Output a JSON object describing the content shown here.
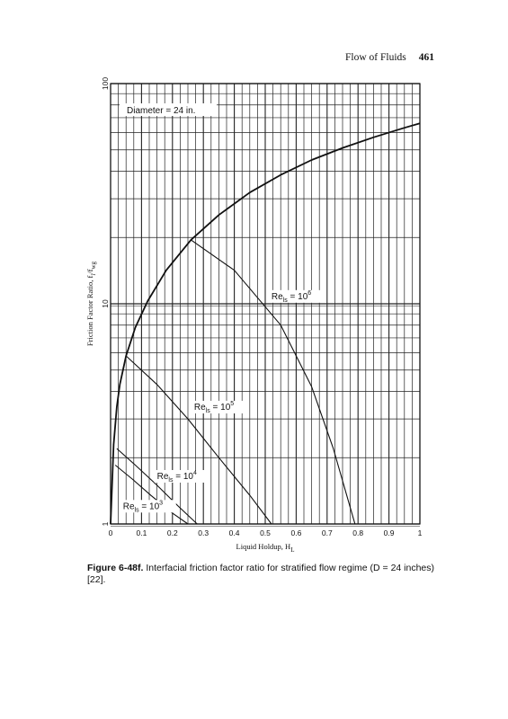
{
  "header": {
    "running_title": "Flow of Fluids",
    "page_number": "461"
  },
  "chart_data": {
    "type": "line",
    "x_scale": "linear",
    "y_scale": "log",
    "xlabel": "Liquid Holdup, H",
    "xlabel_sub": "L",
    "ylabel": "Friction Factor Ratio, f",
    "ylabel_sub": "i",
    "ylabel_slash": "/f",
    "ylabel_sub2": "wg",
    "xlim": [
      0,
      1
    ],
    "ylim": [
      1,
      100
    ],
    "x_ticks": [
      0,
      0.1,
      0.2,
      0.3,
      0.4,
      0.5,
      0.6,
      0.7,
      0.8,
      0.9,
      1
    ],
    "x_tick_labels": [
      "0",
      "0.1",
      "0.2",
      "0.3",
      "0.4",
      "0.5",
      "0.6",
      "0.7",
      "0.8",
      "0.9",
      "1"
    ],
    "y_tick_labels": [
      {
        "value": 1,
        "label": "1"
      },
      {
        "value": 10,
        "label": "10"
      },
      {
        "value": 100,
        "label": "100"
      }
    ],
    "grid": true,
    "annotation": "Diameter = 24 in.",
    "series": [
      {
        "name": "envelope",
        "x": [
          0,
          0.01,
          0.02,
          0.03,
          0.05,
          0.08,
          0.12,
          0.18,
          0.26,
          0.35,
          0.45,
          0.55,
          0.65,
          0.75,
          0.85,
          0.95,
          1.0
        ],
        "y": [
          1.0,
          2.3,
          3.4,
          4.3,
          5.8,
          7.8,
          10.3,
          14.2,
          19.5,
          25.3,
          32,
          38.5,
          45,
          51,
          57,
          63,
          66
        ]
      },
      {
        "name": "Re",
        "sub": "ls",
        "exp": "6",
        "x": [
          0.26,
          0.4,
          0.55,
          0.65,
          0.72,
          0.79
        ],
        "y": [
          19.5,
          14.2,
          8.0,
          4.2,
          2.2,
          1.0
        ]
      },
      {
        "name": "Re",
        "sub": "ls",
        "exp": "5",
        "x": [
          0.05,
          0.15,
          0.25,
          0.35,
          0.45,
          0.52
        ],
        "y": [
          5.8,
          4.3,
          3.0,
          2.0,
          1.35,
          1.0
        ]
      },
      {
        "name": "Re",
        "sub": "ls",
        "exp": "4",
        "x": [
          0.02,
          0.08,
          0.15,
          0.22,
          0.28
        ],
        "y": [
          2.2,
          1.85,
          1.5,
          1.2,
          1.0
        ]
      },
      {
        "name": "Re",
        "sub": "ls",
        "exp": "3",
        "x": [
          0.015,
          0.07,
          0.13,
          0.2,
          0.25
        ],
        "y": [
          1.85,
          1.6,
          1.35,
          1.12,
          1.0
        ]
      }
    ],
    "labels": [
      {
        "series": 1,
        "text": "Re",
        "sub": "ls",
        "mid": " = 10",
        "exp": "6",
        "x": 0.52,
        "y": 10.5
      },
      {
        "series": 2,
        "text": "Re",
        "sub": "ls",
        "mid": " = 10",
        "exp": "5",
        "x": 0.27,
        "y": 3.3
      },
      {
        "series": 3,
        "text": "Re",
        "sub": "ls",
        "mid": " = 10",
        "exp": "4",
        "x": 0.15,
        "y": 1.6
      },
      {
        "series": 4,
        "text": "Re",
        "sub": "ls",
        "mid": " = 10",
        "exp": "3",
        "x": 0.04,
        "y": 1.17
      }
    ]
  },
  "caption": {
    "figure_label": "Figure 6-48f.",
    "text": " Interfacial friction factor ratio for stratified flow regime (D = 24 inches) [22]."
  }
}
